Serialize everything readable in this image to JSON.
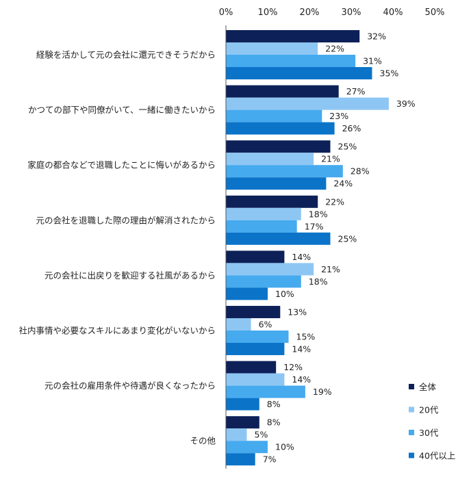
{
  "chart_data": {
    "type": "bar",
    "orientation": "horizontal",
    "title": "",
    "xlabel": "",
    "ylabel": "",
    "xlim": [
      0,
      50
    ],
    "tick_values": [
      0,
      10,
      20,
      30,
      40,
      50
    ],
    "tick_labels": [
      "0%",
      "10%",
      "20%",
      "30%",
      "40%",
      "50%"
    ],
    "grid": false,
    "legend_position": "bottom-right",
    "categories": [
      "経験を活かして元の会社に還元できそうだから",
      "かつての部下や同僚がいて、一緒に働きたいから",
      "家庭の都合などで退職したことに悔いがあるから",
      "元の会社を退職した際の理由が解消されたから",
      "元の会社に出戻りを歓迎する社風があるから",
      "社内事情や必要なスキルにあまり変化がいないから",
      "元の会社の雇用条件や待遇が良くなったから",
      "その他"
    ],
    "series": [
      {
        "name": "全体",
        "color": "#0d2158",
        "values": [
          32,
          27,
          25,
          22,
          14,
          13,
          12,
          8
        ]
      },
      {
        "name": "20代",
        "color": "#8ec6f3",
        "values": [
          22,
          39,
          21,
          18,
          21,
          6,
          14,
          5
        ]
      },
      {
        "name": "30代",
        "color": "#46aaef",
        "values": [
          31,
          23,
          28,
          17,
          18,
          15,
          19,
          10
        ]
      },
      {
        "name": "40代以上",
        "color": "#0b74c9",
        "values": [
          35,
          26,
          24,
          25,
          10,
          14,
          8,
          7
        ]
      }
    ],
    "value_suffix": "%"
  }
}
